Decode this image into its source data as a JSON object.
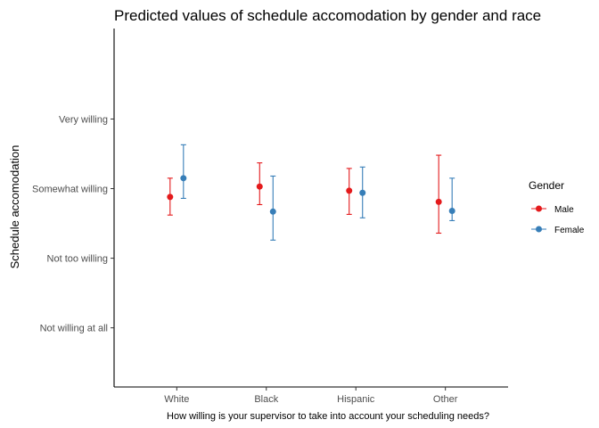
{
  "chart_data": {
    "type": "scatter",
    "title": "Predicted values of schedule accomodation by gender and race",
    "xlabel": "How willing is your supervisor to take into account your scheduling needs?",
    "ylabel": "Schedule accomodation",
    "categories": [
      "White",
      "Black",
      "Hispanic",
      "Other"
    ],
    "y_tick_values": [
      1,
      2,
      3,
      4
    ],
    "y_tick_labels": [
      "Not willing at all",
      "Not too willing",
      "Somewhat willing",
      "Very willing"
    ],
    "ylim": [
      0.15,
      5.3
    ],
    "error_bars": true,
    "grid": false,
    "legend": {
      "title": "Gender",
      "position": "right"
    },
    "series": [
      {
        "name": "Male",
        "color": "#e41a1c",
        "values": [
          2.88,
          3.03,
          2.97,
          2.81
        ],
        "lower": [
          2.62,
          2.77,
          2.63,
          2.36
        ],
        "upper": [
          3.15,
          3.37,
          3.29,
          3.48
        ]
      },
      {
        "name": "Female",
        "color": "#377eb8",
        "values": [
          3.15,
          2.67,
          2.94,
          2.68
        ],
        "lower": [
          2.86,
          2.26,
          2.58,
          2.54
        ],
        "upper": [
          3.63,
          3.18,
          3.31,
          3.15
        ]
      }
    ]
  }
}
